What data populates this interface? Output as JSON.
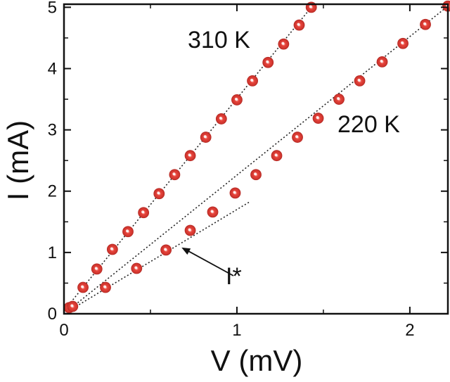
{
  "chart_data": {
    "type": "scatter",
    "title": "",
    "xlabel": "V (mV)",
    "ylabel": "I (mA)",
    "xlim": [
      0,
      2.22
    ],
    "ylim": [
      0,
      5.05
    ],
    "grid": false,
    "x_major_ticks": [
      0,
      1,
      2
    ],
    "y_major_ticks": [
      0,
      1,
      2,
      3,
      4,
      5
    ],
    "x_tick_labels": [
      "0",
      "1",
      "2"
    ],
    "y_tick_labels": [
      "0",
      "1",
      "2",
      "3",
      "4",
      "5"
    ],
    "marker_color": "#e8453c",
    "series": [
      {
        "name": "310 K",
        "x": [
          0.03,
          0.11,
          0.19,
          0.28,
          0.37,
          0.46,
          0.55,
          0.64,
          0.73,
          0.82,
          0.91,
          1.0,
          1.09,
          1.18,
          1.27,
          1.36,
          1.43
        ],
        "y": [
          0.1,
          0.43,
          0.73,
          1.05,
          1.34,
          1.65,
          1.96,
          2.27,
          2.58,
          2.88,
          3.18,
          3.49,
          3.8,
          4.1,
          4.4,
          4.71,
          5.0
        ],
        "fit": {
          "x": [
            0.0,
            1.43
          ],
          "y": [
            0.05,
            5.0
          ]
        }
      },
      {
        "name": "220 K",
        "x": [
          0.05,
          0.24,
          0.42,
          0.59,
          0.73,
          0.86,
          0.99,
          1.11,
          1.23,
          1.35,
          1.47,
          1.59,
          1.71,
          1.84,
          1.96,
          2.09,
          2.22
        ],
        "y": [
          0.12,
          0.43,
          0.74,
          1.04,
          1.36,
          1.66,
          1.97,
          2.27,
          2.58,
          2.88,
          3.19,
          3.5,
          3.8,
          4.11,
          4.41,
          4.72,
          5.02
        ],
        "fit": {
          "x": [
            0.0,
            2.22
          ],
          "y": [
            0.0,
            5.02
          ]
        },
        "low_fit": {
          "x": [
            0.0,
            1.07
          ],
          "y": [
            0.0,
            1.82
          ]
        }
      }
    ],
    "annotations": [
      {
        "text": "I*",
        "point": [
          0.68,
          1.08
        ],
        "label_at": [
          0.98,
          0.62
        ]
      }
    ]
  }
}
